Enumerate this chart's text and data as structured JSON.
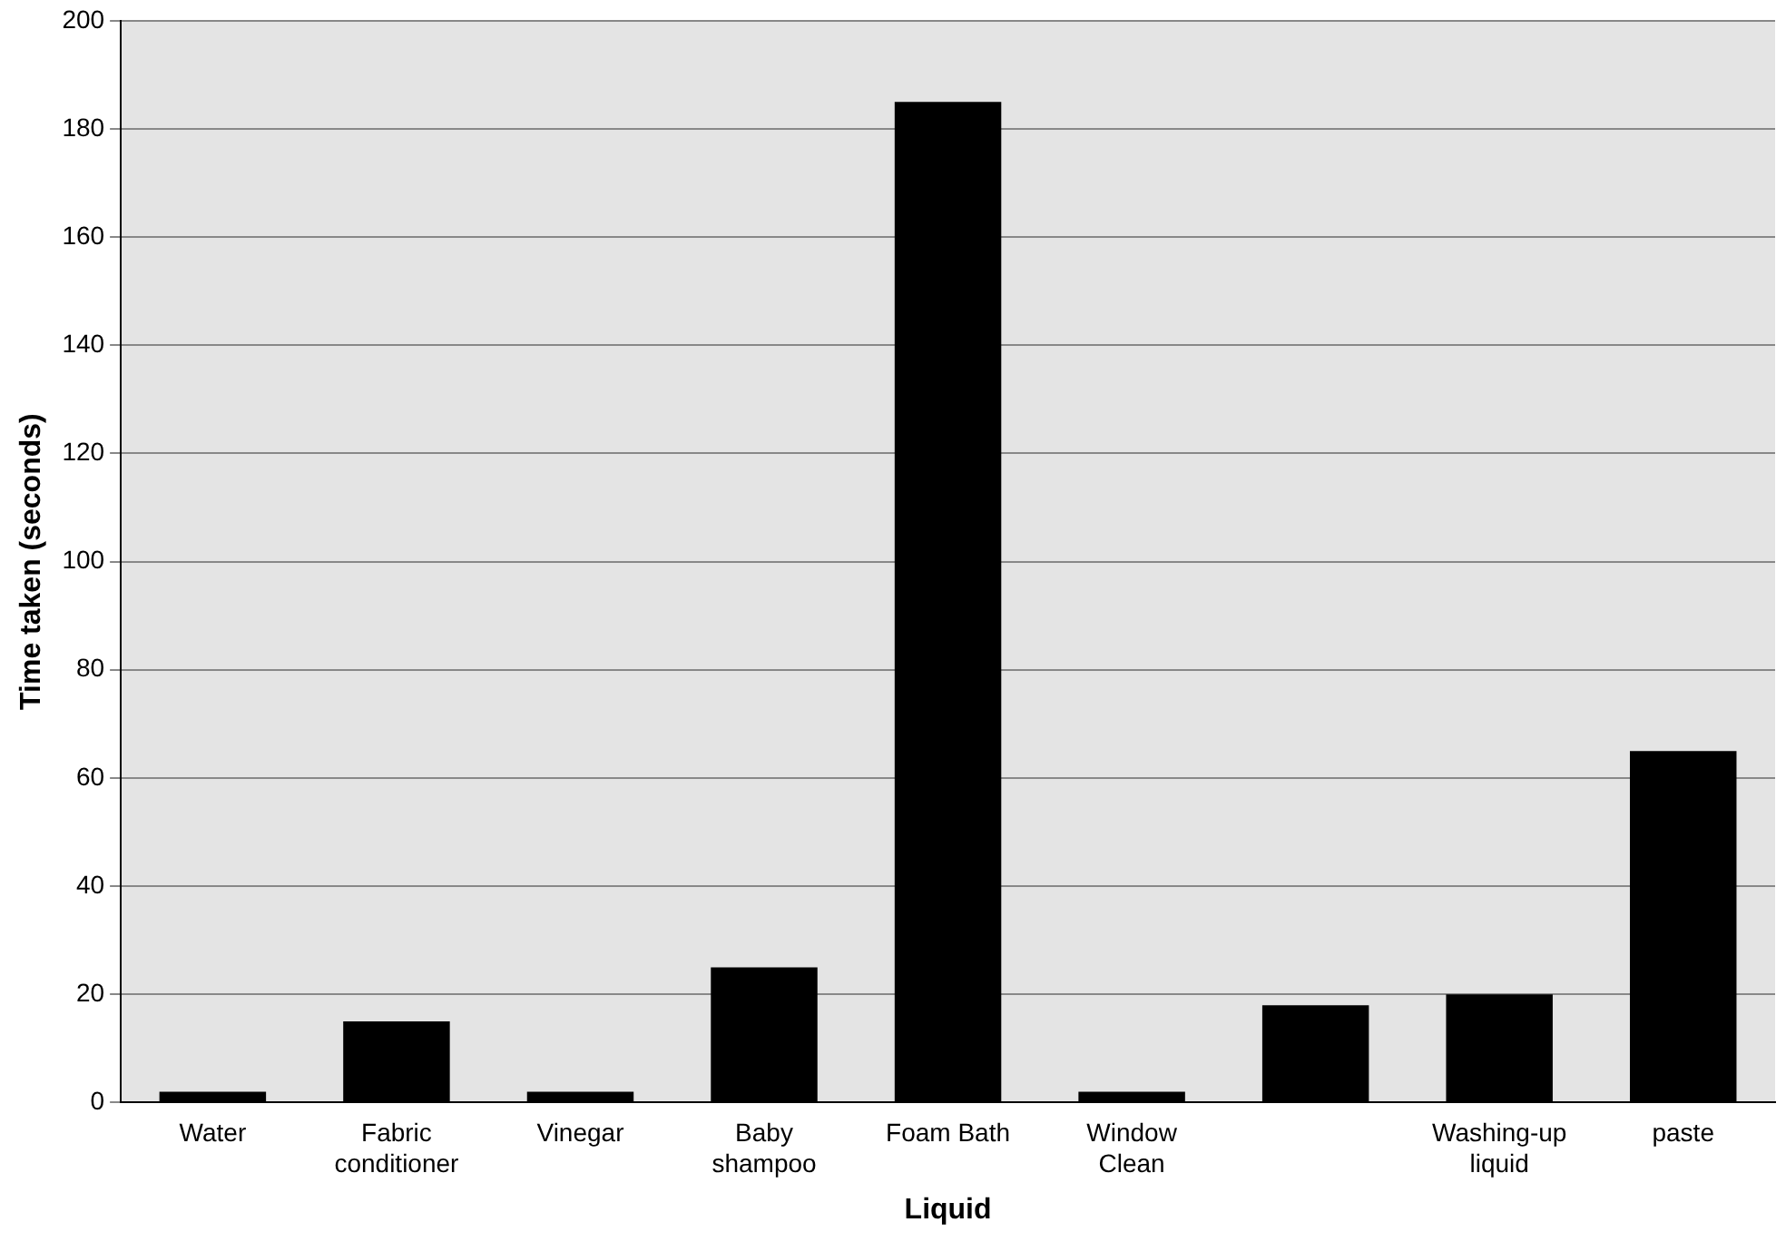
{
  "chart_data": {
    "type": "bar",
    "xlabel": "Liquid",
    "ylabel": "Time taken (seconds)",
    "categories": [
      "Water",
      "Fabric conditioner",
      "Vinegar",
      "Baby shampoo",
      "Foam Bath",
      "Window Clean",
      null,
      "Washing-up liquid",
      "paste"
    ],
    "values": [
      2,
      15,
      2,
      25,
      185,
      2,
      18,
      20,
      65
    ],
    "color": "#000000",
    "ylim": [
      0,
      200
    ],
    "yticks": [
      0,
      20,
      40,
      60,
      80,
      100,
      120,
      140,
      160,
      180,
      200
    ],
    "grid": "y",
    "legend": false
  }
}
